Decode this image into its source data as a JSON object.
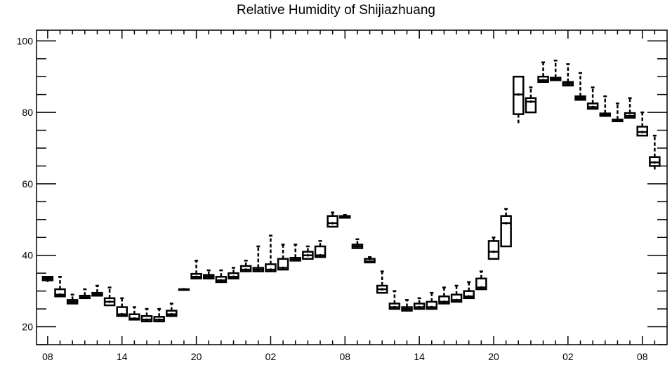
{
  "chart_data": {
    "type": "box",
    "title": "Relative Humidity of Shijiazhuang",
    "xlabel": "",
    "ylabel": "",
    "ylim": [
      15,
      103
    ],
    "y_major_ticks": [
      20,
      40,
      60,
      80,
      100
    ],
    "y_minor_step": 5,
    "x_tick_labels": [
      "08",
      "14",
      "20",
      "02",
      "08",
      "14",
      "20",
      "02",
      "08"
    ],
    "x_tick_positions": [
      0,
      6,
      12,
      18,
      24,
      30,
      36,
      42,
      48
    ],
    "x_minor_step": 1,
    "grid": false,
    "boxes": [
      {
        "x": 0,
        "q1": 33.0,
        "median": 33.5,
        "q3": 34.0,
        "whisker_low": 32.5,
        "whisker_high": 34.0
      },
      {
        "x": 1,
        "q1": 28.5,
        "median": 29.0,
        "q3": 30.5,
        "whisker_low": 28.5,
        "whisker_high": 34.0
      },
      {
        "x": 2,
        "q1": 26.5,
        "median": 27.0,
        "q3": 27.5,
        "whisker_low": 26.5,
        "whisker_high": 29.0
      },
      {
        "x": 3,
        "q1": 28.0,
        "median": 28.2,
        "q3": 28.7,
        "whisker_low": 28.0,
        "whisker_high": 30.5
      },
      {
        "x": 4,
        "q1": 28.7,
        "median": 29.0,
        "q3": 29.5,
        "whisker_low": 28.5,
        "whisker_high": 31.5
      },
      {
        "x": 5,
        "q1": 26.0,
        "median": 27.0,
        "q3": 28.0,
        "whisker_low": 26.0,
        "whisker_high": 31.0
      },
      {
        "x": 6,
        "q1": 23.0,
        "median": 23.5,
        "q3": 25.5,
        "whisker_low": 23.0,
        "whisker_high": 28.0
      },
      {
        "x": 7,
        "q1": 22.0,
        "median": 22.3,
        "q3": 23.5,
        "whisker_low": 21.8,
        "whisker_high": 25.5
      },
      {
        "x": 8,
        "q1": 21.5,
        "median": 22.0,
        "q3": 23.0,
        "whisker_low": 21.5,
        "whisker_high": 25.0
      },
      {
        "x": 9,
        "q1": 21.5,
        "median": 22.0,
        "q3": 22.8,
        "whisker_low": 21.5,
        "whisker_high": 25.0
      },
      {
        "x": 10,
        "q1": 23.0,
        "median": 23.5,
        "q3": 24.5,
        "whisker_low": 23.0,
        "whisker_high": 26.5
      },
      {
        "x": 11,
        "q1": 30.5,
        "median": 30.5,
        "q3": 30.5,
        "whisker_low": 30.5,
        "whisker_high": 30.5
      },
      {
        "x": 12,
        "q1": 33.5,
        "median": 34.0,
        "q3": 34.8,
        "whisker_low": 33.5,
        "whisker_high": 38.5
      },
      {
        "x": 13,
        "q1": 33.5,
        "median": 34.0,
        "q3": 34.5,
        "whisker_low": 33.3,
        "whisker_high": 35.8
      },
      {
        "x": 14,
        "q1": 32.5,
        "median": 33.0,
        "q3": 34.0,
        "whisker_low": 32.5,
        "whisker_high": 35.8
      },
      {
        "x": 15,
        "q1": 33.5,
        "median": 34.0,
        "q3": 35.0,
        "whisker_low": 33.5,
        "whisker_high": 36.5
      },
      {
        "x": 16,
        "q1": 35.5,
        "median": 36.0,
        "q3": 37.0,
        "whisker_low": 35.5,
        "whisker_high": 38.5
      },
      {
        "x": 17,
        "q1": 35.5,
        "median": 36.0,
        "q3": 36.5,
        "whisker_low": 35.3,
        "whisker_high": 42.5
      },
      {
        "x": 18,
        "q1": 35.5,
        "median": 36.0,
        "q3": 37.5,
        "whisker_low": 35.3,
        "whisker_high": 45.5
      },
      {
        "x": 19,
        "q1": 36.0,
        "median": 36.5,
        "q3": 39.0,
        "whisker_low": 36.0,
        "whisker_high": 43.0
      },
      {
        "x": 20,
        "q1": 38.5,
        "median": 38.8,
        "q3": 39.3,
        "whisker_low": 38.5,
        "whisker_high": 43.0
      },
      {
        "x": 21,
        "q1": 39.0,
        "median": 40.0,
        "q3": 41.0,
        "whisker_low": 39.0,
        "whisker_high": 42.5
      },
      {
        "x": 22,
        "q1": 39.5,
        "median": 40.0,
        "q3": 42.5,
        "whisker_low": 39.5,
        "whisker_high": 44.0
      },
      {
        "x": 23,
        "q1": 48.0,
        "median": 49.0,
        "q3": 51.0,
        "whisker_low": 48.0,
        "whisker_high": 52.0
      },
      {
        "x": 24,
        "q1": 50.5,
        "median": 50.8,
        "q3": 51.0,
        "whisker_low": 50.5,
        "whisker_high": 51.3
      },
      {
        "x": 25,
        "q1": 42.0,
        "median": 42.5,
        "q3": 43.0,
        "whisker_low": 42.0,
        "whisker_high": 44.5
      },
      {
        "x": 26,
        "q1": 38.0,
        "median": 38.3,
        "q3": 39.0,
        "whisker_low": 37.8,
        "whisker_high": 39.5
      },
      {
        "x": 27,
        "q1": 29.5,
        "median": 30.5,
        "q3": 31.5,
        "whisker_low": 29.5,
        "whisker_high": 35.5
      },
      {
        "x": 28,
        "q1": 25.0,
        "median": 25.5,
        "q3": 26.5,
        "whisker_low": 25.0,
        "whisker_high": 30.0
      },
      {
        "x": 29,
        "q1": 24.5,
        "median": 25.0,
        "q3": 25.5,
        "whisker_low": 24.5,
        "whisker_high": 27.5
      },
      {
        "x": 30,
        "q1": 25.0,
        "median": 25.5,
        "q3": 26.5,
        "whisker_low": 25.0,
        "whisker_high": 28.0
      },
      {
        "x": 31,
        "q1": 25.0,
        "median": 25.5,
        "q3": 27.0,
        "whisker_low": 25.0,
        "whisker_high": 29.5
      },
      {
        "x": 32,
        "q1": 26.5,
        "median": 27.0,
        "q3": 28.5,
        "whisker_low": 26.5,
        "whisker_high": 31.0
      },
      {
        "x": 33,
        "q1": 27.0,
        "median": 27.5,
        "q3": 29.0,
        "whisker_low": 27.0,
        "whisker_high": 31.5
      },
      {
        "x": 34,
        "q1": 28.0,
        "median": 28.5,
        "q3": 30.0,
        "whisker_low": 28.0,
        "whisker_high": 32.5
      },
      {
        "x": 35,
        "q1": 30.5,
        "median": 31.0,
        "q3": 33.5,
        "whisker_low": 30.5,
        "whisker_high": 35.5
      },
      {
        "x": 36,
        "q1": 39.0,
        "median": 41.0,
        "q3": 44.0,
        "whisker_low": 39.0,
        "whisker_high": 45.0
      },
      {
        "x": 37,
        "q1": 42.5,
        "median": 49.0,
        "q3": 51.0,
        "whisker_low": 42.5,
        "whisker_high": 53.0
      },
      {
        "x": 38,
        "q1": 79.5,
        "median": 85.0,
        "q3": 90.0,
        "whisker_low": 77.0,
        "whisker_high": 90.0
      },
      {
        "x": 39,
        "q1": 80.0,
        "median": 83.0,
        "q3": 84.0,
        "whisker_low": 80.0,
        "whisker_high": 87.0
      },
      {
        "x": 40,
        "q1": 88.5,
        "median": 89.0,
        "q3": 90.0,
        "whisker_low": 88.5,
        "whisker_high": 94.0
      },
      {
        "x": 41,
        "q1": 89.0,
        "median": 89.3,
        "q3": 89.7,
        "whisker_low": 88.8,
        "whisker_high": 94.5
      },
      {
        "x": 42,
        "q1": 87.5,
        "median": 88.0,
        "q3": 88.5,
        "whisker_low": 87.5,
        "whisker_high": 93.5
      },
      {
        "x": 43,
        "q1": 83.5,
        "median": 84.0,
        "q3": 84.5,
        "whisker_low": 83.5,
        "whisker_high": 91.0
      },
      {
        "x": 44,
        "q1": 81.0,
        "median": 81.5,
        "q3": 82.5,
        "whisker_low": 81.0,
        "whisker_high": 87.0
      },
      {
        "x": 45,
        "q1": 79.0,
        "median": 79.3,
        "q3": 79.7,
        "whisker_low": 79.0,
        "whisker_high": 84.5
      },
      {
        "x": 46,
        "q1": 77.5,
        "median": 77.7,
        "q3": 78.0,
        "whisker_low": 77.5,
        "whisker_high": 82.5
      },
      {
        "x": 47,
        "q1": 78.5,
        "median": 79.0,
        "q3": 79.8,
        "whisker_low": 78.5,
        "whisker_high": 84.0
      },
      {
        "x": 48,
        "q1": 73.5,
        "median": 74.5,
        "q3": 76.0,
        "whisker_low": 73.5,
        "whisker_high": 80.0
      },
      {
        "x": 49,
        "q1": 65.0,
        "median": 66.0,
        "q3": 67.5,
        "whisker_low": 63.5,
        "whisker_high": 73.5
      }
    ]
  }
}
